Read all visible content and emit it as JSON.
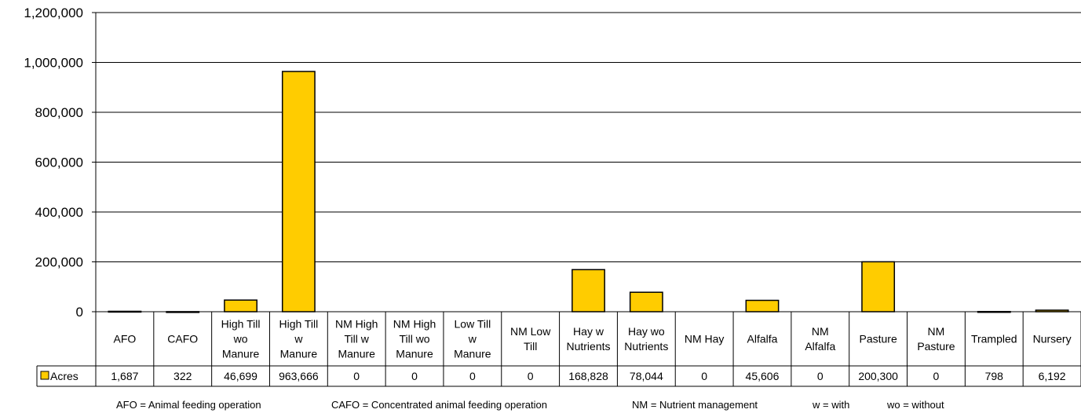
{
  "chart_data": {
    "type": "bar",
    "title": "",
    "xlabel": "",
    "ylabel": "",
    "ylim": [
      0,
      1200000
    ],
    "yticks": [
      "0",
      "200,000",
      "400,000",
      "600,000",
      "800,000",
      "1,000,000",
      "1,200,000"
    ],
    "ytick_values": [
      0,
      200000,
      400000,
      600000,
      800000,
      1000000,
      1200000
    ],
    "grid": true,
    "categories": [
      [
        "AFO"
      ],
      [
        "CAFO"
      ],
      [
        "High Till",
        "wo",
        "Manure"
      ],
      [
        "High Till",
        "w",
        "Manure"
      ],
      [
        "NM High",
        "Till w",
        "Manure"
      ],
      [
        "NM High",
        "Till wo",
        "Manure"
      ],
      [
        "Low Till",
        "w",
        "Manure"
      ],
      [
        "NM Low",
        "Till"
      ],
      [
        "Hay w",
        "Nutrients"
      ],
      [
        "Hay wo",
        "Nutrients"
      ],
      [
        "NM Hay"
      ],
      [
        "Alfalfa"
      ],
      [
        "NM",
        "Alfalfa"
      ],
      [
        "Pasture"
      ],
      [
        "NM",
        "Pasture"
      ],
      [
        "Trampled"
      ],
      [
        "Nursery"
      ]
    ],
    "series": [
      {
        "name": "Acres",
        "color": "#FFCC00",
        "values": [
          1687,
          322,
          46699,
          963666,
          0,
          0,
          0,
          0,
          168828,
          78044,
          0,
          45606,
          0,
          200300,
          0,
          798,
          6192
        ],
        "labels": [
          "1,687",
          "322",
          "46,699",
          "963,666",
          "0",
          "0",
          "0",
          "0",
          "168,828",
          "78,044",
          "0",
          "45,606",
          "0",
          "200,300",
          "0",
          "798",
          "6,192"
        ]
      }
    ],
    "legend": "data-table-left"
  },
  "footnote": {
    "afo": "AFO =  Animal feeding operation",
    "cafo": "CAFO = Concentrated animal feeding operation",
    "nm": "NM = Nutrient management",
    "w": "w = with",
    "wo": "wo = without"
  }
}
